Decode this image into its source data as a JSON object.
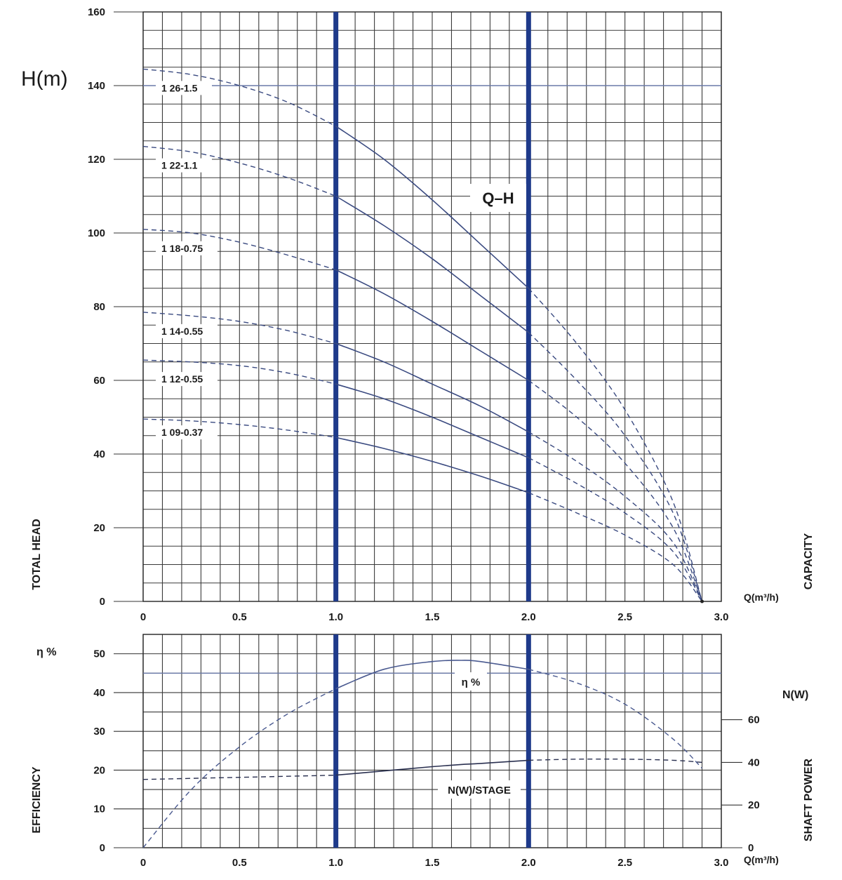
{
  "upper": {
    "title_label": "Q–H",
    "ylabel_unit": "H(m)",
    "ylabel_side": "TOTAL HEAD",
    "xlabel_unit": "Q(m³/h)",
    "xlabel_side": "CAPACITY",
    "y_ticks": [
      "0",
      "20",
      "40",
      "60",
      "80",
      "100",
      "120",
      "140",
      "160"
    ],
    "x_ticks": [
      "0",
      "0.5",
      "1.0",
      "1.5",
      "2.0",
      "2.5",
      "3.0"
    ]
  },
  "lower": {
    "ylabel_left_unit": "η %",
    "ylabel_left_side": "EFFICIENCY",
    "ylabel_right_unit": "N(W)",
    "ylabel_right_side": "SHAFT POWER",
    "xlabel_unit": "Q(m³/h)",
    "y_left_ticks": [
      "0",
      "10",
      "20",
      "30",
      "40",
      "50"
    ],
    "y_right_ticks": [
      "0",
      "20",
      "40",
      "60"
    ],
    "x_ticks": [
      "0",
      "0.5",
      "1.0",
      "1.5",
      "2.0",
      "2.5",
      "3.0"
    ],
    "eta_label": "η %",
    "power_label": "N(W)/STAGE"
  },
  "chart_data": [
    {
      "type": "line",
      "title": "Q–H",
      "xlabel": "Q(m³/h)",
      "ylabel": "H(m)",
      "xlim": [
        0,
        3.0
      ],
      "ylim": [
        0,
        160
      ],
      "grid": true,
      "operating_range": [
        1.0,
        2.0
      ],
      "x": [
        0,
        0.25,
        0.5,
        0.75,
        1.0,
        1.25,
        1.5,
        1.75,
        2.0,
        2.25,
        2.5,
        2.75,
        2.9
      ],
      "series": [
        {
          "name": "1 26-1.5",
          "color": "#3a4a80",
          "values": [
            144.5,
            143,
            140,
            135.5,
            129,
            120,
            109,
            97,
            85,
            70,
            52,
            27,
            0
          ]
        },
        {
          "name": "1 22-1.1",
          "color": "#3a4a80",
          "values": [
            123.5,
            122,
            119,
            115,
            110,
            102,
            93,
            83,
            73,
            60,
            45,
            24,
            0
          ]
        },
        {
          "name": "1 18-0.75",
          "color": "#3a4a80",
          "values": [
            101,
            100,
            97.5,
            94,
            90,
            83.5,
            76,
            68,
            60,
            50,
            37.5,
            20,
            0
          ]
        },
        {
          "name": "1 14-0.55",
          "color": "#3a4a80",
          "values": [
            78.5,
            77.5,
            76,
            73.5,
            70,
            65,
            59,
            53,
            46,
            38,
            28.5,
            16,
            0
          ]
        },
        {
          "name": "1 12-0.55",
          "color": "#3a4a80",
          "values": [
            65.5,
            65,
            64,
            62,
            59,
            55,
            50,
            44.5,
            39,
            32,
            24,
            13.5,
            0
          ]
        },
        {
          "name": "1 09-0.37",
          "color": "#3a4a80",
          "values": [
            49.5,
            49,
            48,
            46.5,
            44.5,
            41.5,
            38,
            34,
            29.5,
            24,
            18,
            10,
            0
          ]
        }
      ]
    },
    {
      "type": "line",
      "xlabel": "Q(m³/h)",
      "ylabel": "η %",
      "ylabel_right": "N(W)",
      "xlim": [
        0,
        3.0
      ],
      "ylim": [
        0,
        55
      ],
      "ylim_right": [
        0,
        100
      ],
      "grid": true,
      "operating_range": [
        1.0,
        2.0
      ],
      "x": [
        0,
        0.25,
        0.5,
        0.75,
        1.0,
        1.25,
        1.5,
        1.65,
        1.75,
        2.0,
        2.25,
        2.5,
        2.75,
        2.9
      ],
      "series": [
        {
          "name": "η %",
          "axis": "left",
          "color": "#4a5a90",
          "values": [
            0,
            15,
            26,
            34.5,
            41,
            46,
            48,
            48.3,
            48,
            46,
            42.5,
            37,
            28,
            20.5
          ]
        },
        {
          "name": "N(W)/STAGE",
          "axis": "right",
          "color": "#2a3050",
          "values": [
            32,
            32.5,
            33,
            33.5,
            34,
            36,
            38,
            39,
            39.5,
            41,
            41.5,
            41.5,
            41,
            40
          ]
        }
      ]
    }
  ]
}
